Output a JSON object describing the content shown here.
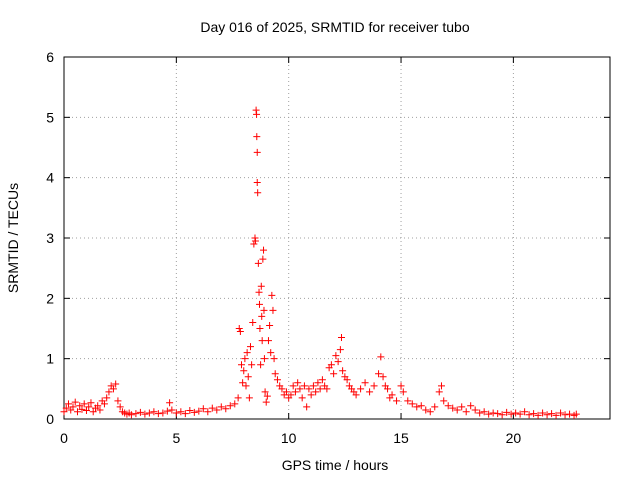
{
  "chart_data": {
    "type": "scatter",
    "title": "Day 016 of 2025, SRMTID for receiver tubo",
    "xlabel": "GPS time / hours",
    "ylabel": "SRMTID / TECUs",
    "xlim": [
      0,
      24.3
    ],
    "ylim": [
      0,
      6
    ],
    "xticks": [
      0,
      5,
      10,
      15,
      20
    ],
    "yticks": [
      0,
      1,
      2,
      3,
      4,
      5,
      6
    ],
    "grid": true,
    "marker": "plus",
    "color": "#ff0000",
    "series": [
      {
        "name": "SRMTID",
        "points": [
          [
            0.0,
            0.12
          ],
          [
            0.1,
            0.18
          ],
          [
            0.2,
            0.25
          ],
          [
            0.3,
            0.15
          ],
          [
            0.4,
            0.2
          ],
          [
            0.5,
            0.28
          ],
          [
            0.6,
            0.12
          ],
          [
            0.7,
            0.22
          ],
          [
            0.8,
            0.16
          ],
          [
            0.9,
            0.25
          ],
          [
            1.0,
            0.14
          ],
          [
            1.1,
            0.2
          ],
          [
            1.2,
            0.27
          ],
          [
            1.3,
            0.12
          ],
          [
            1.4,
            0.18
          ],
          [
            1.5,
            0.22
          ],
          [
            1.6,
            0.15
          ],
          [
            1.7,
            0.3
          ],
          [
            1.8,
            0.25
          ],
          [
            1.9,
            0.35
          ],
          [
            2.0,
            0.45
          ],
          [
            2.1,
            0.55
          ],
          [
            2.2,
            0.5
          ],
          [
            2.3,
            0.58
          ],
          [
            2.4,
            0.3
          ],
          [
            2.5,
            0.2
          ],
          [
            2.6,
            0.12
          ],
          [
            2.7,
            0.1
          ],
          [
            2.8,
            0.08
          ],
          [
            2.9,
            0.1
          ],
          [
            3.0,
            0.07
          ],
          [
            3.2,
            0.09
          ],
          [
            3.4,
            0.11
          ],
          [
            3.6,
            0.08
          ],
          [
            3.8,
            0.1
          ],
          [
            4.0,
            0.12
          ],
          [
            4.2,
            0.09
          ],
          [
            4.4,
            0.1
          ],
          [
            4.6,
            0.13
          ],
          [
            4.7,
            0.27
          ],
          [
            4.8,
            0.15
          ],
          [
            5.0,
            0.1
          ],
          [
            5.2,
            0.12
          ],
          [
            5.4,
            0.09
          ],
          [
            5.6,
            0.14
          ],
          [
            5.8,
            0.11
          ],
          [
            6.0,
            0.13
          ],
          [
            6.2,
            0.17
          ],
          [
            6.4,
            0.12
          ],
          [
            6.6,
            0.18
          ],
          [
            6.8,
            0.15
          ],
          [
            7.0,
            0.2
          ],
          [
            7.2,
            0.17
          ],
          [
            7.4,
            0.22
          ],
          [
            7.6,
            0.25
          ],
          [
            7.75,
            0.35
          ],
          [
            7.8,
            1.5
          ],
          [
            7.85,
            1.45
          ],
          [
            7.9,
            0.9
          ],
          [
            7.95,
            0.6
          ],
          [
            8.0,
            0.8
          ],
          [
            8.05,
            1.0
          ],
          [
            8.1,
            0.55
          ],
          [
            8.15,
            1.1
          ],
          [
            8.2,
            0.7
          ],
          [
            8.25,
            0.35
          ],
          [
            8.3,
            1.2
          ],
          [
            8.35,
            0.9
          ],
          [
            8.4,
            1.6
          ],
          [
            8.45,
            2.9
          ],
          [
            8.5,
            3.0
          ],
          [
            8.52,
            2.95
          ],
          [
            8.55,
            5.12
          ],
          [
            8.57,
            5.05
          ],
          [
            8.58,
            4.68
          ],
          [
            8.6,
            4.42
          ],
          [
            8.6,
            3.92
          ],
          [
            8.62,
            3.75
          ],
          [
            8.65,
            2.58
          ],
          [
            8.68,
            2.1
          ],
          [
            8.7,
            1.9
          ],
          [
            8.72,
            1.5
          ],
          [
            8.75,
            0.9
          ],
          [
            8.78,
            2.2
          ],
          [
            8.8,
            1.7
          ],
          [
            8.82,
            1.3
          ],
          [
            8.85,
            2.65
          ],
          [
            8.88,
            2.8
          ],
          [
            8.9,
            1.8
          ],
          [
            8.92,
            1.0
          ],
          [
            8.95,
            0.45
          ],
          [
            9.0,
            0.28
          ],
          [
            9.05,
            0.38
          ],
          [
            9.1,
            1.3
          ],
          [
            9.15,
            1.55
          ],
          [
            9.2,
            1.1
          ],
          [
            9.25,
            2.05
          ],
          [
            9.3,
            1.8
          ],
          [
            9.35,
            1.0
          ],
          [
            9.4,
            0.75
          ],
          [
            9.5,
            0.65
          ],
          [
            9.6,
            0.55
          ],
          [
            9.7,
            0.5
          ],
          [
            9.8,
            0.4
          ],
          [
            9.9,
            0.45
          ],
          [
            10.0,
            0.35
          ],
          [
            10.1,
            0.4
          ],
          [
            10.2,
            0.55
          ],
          [
            10.3,
            0.45
          ],
          [
            10.4,
            0.6
          ],
          [
            10.5,
            0.5
          ],
          [
            10.6,
            0.35
          ],
          [
            10.7,
            0.55
          ],
          [
            10.8,
            0.2
          ],
          [
            10.9,
            0.5
          ],
          [
            11.0,
            0.4
          ],
          [
            11.1,
            0.55
          ],
          [
            11.2,
            0.45
          ],
          [
            11.3,
            0.6
          ],
          [
            11.4,
            0.5
          ],
          [
            11.5,
            0.65
          ],
          [
            11.6,
            0.55
          ],
          [
            11.7,
            0.5
          ],
          [
            11.8,
            0.85
          ],
          [
            11.9,
            0.9
          ],
          [
            12.0,
            0.75
          ],
          [
            12.1,
            1.05
          ],
          [
            12.2,
            0.95
          ],
          [
            12.3,
            1.15
          ],
          [
            12.35,
            1.35
          ],
          [
            12.4,
            0.8
          ],
          [
            12.5,
            0.7
          ],
          [
            12.6,
            0.65
          ],
          [
            12.7,
            0.55
          ],
          [
            12.8,
            0.5
          ],
          [
            12.9,
            0.45
          ],
          [
            13.0,
            0.4
          ],
          [
            13.2,
            0.5
          ],
          [
            13.4,
            0.6
          ],
          [
            13.6,
            0.45
          ],
          [
            13.8,
            0.55
          ],
          [
            14.0,
            0.75
          ],
          [
            14.1,
            1.03
          ],
          [
            14.2,
            0.7
          ],
          [
            14.3,
            0.55
          ],
          [
            14.4,
            0.5
          ],
          [
            14.5,
            0.35
          ],
          [
            14.6,
            0.4
          ],
          [
            14.8,
            0.3
          ],
          [
            15.0,
            0.55
          ],
          [
            15.1,
            0.45
          ],
          [
            15.3,
            0.3
          ],
          [
            15.5,
            0.25
          ],
          [
            15.7,
            0.2
          ],
          [
            15.9,
            0.22
          ],
          [
            16.1,
            0.15
          ],
          [
            16.3,
            0.12
          ],
          [
            16.5,
            0.2
          ],
          [
            16.7,
            0.45
          ],
          [
            16.8,
            0.55
          ],
          [
            16.9,
            0.3
          ],
          [
            17.1,
            0.22
          ],
          [
            17.3,
            0.18
          ],
          [
            17.5,
            0.15
          ],
          [
            17.7,
            0.2
          ],
          [
            17.9,
            0.12
          ],
          [
            18.1,
            0.22
          ],
          [
            18.3,
            0.15
          ],
          [
            18.5,
            0.1
          ],
          [
            18.7,
            0.12
          ],
          [
            18.9,
            0.08
          ],
          [
            19.1,
            0.1
          ],
          [
            19.3,
            0.09
          ],
          [
            19.5,
            0.07
          ],
          [
            19.7,
            0.11
          ],
          [
            19.9,
            0.08
          ],
          [
            20.1,
            0.1
          ],
          [
            20.3,
            0.08
          ],
          [
            20.5,
            0.12
          ],
          [
            20.7,
            0.07
          ],
          [
            20.9,
            0.09
          ],
          [
            21.1,
            0.06
          ],
          [
            21.3,
            0.1
          ],
          [
            21.5,
            0.07
          ],
          [
            21.7,
            0.09
          ],
          [
            21.9,
            0.06
          ],
          [
            22.1,
            0.1
          ],
          [
            22.3,
            0.07
          ],
          [
            22.5,
            0.08
          ],
          [
            22.7,
            0.06
          ],
          [
            22.8,
            0.08
          ]
        ]
      }
    ]
  }
}
